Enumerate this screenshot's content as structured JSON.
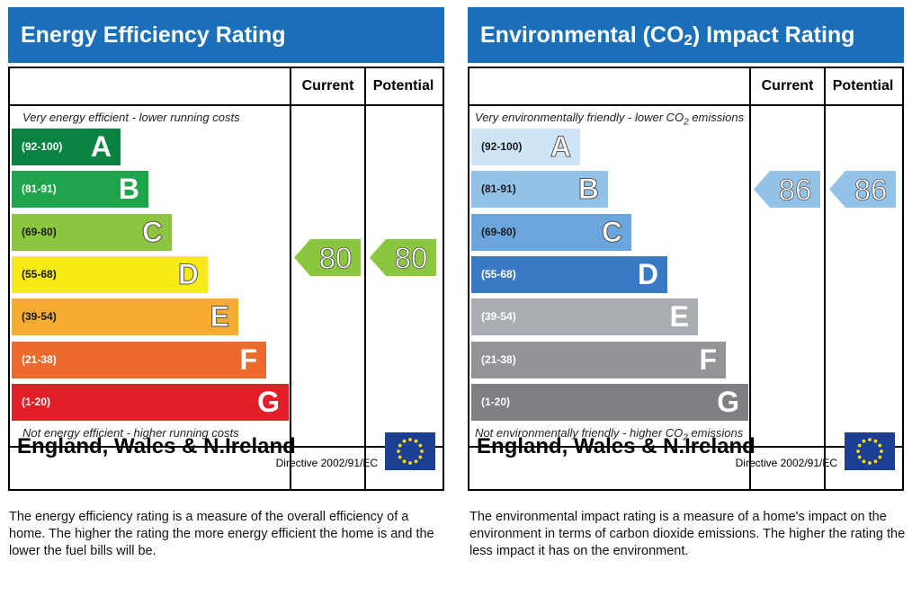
{
  "chart_data": [
    {
      "type": "bar",
      "title": "Energy Efficiency Rating",
      "columns": [
        "Current",
        "Potential"
      ],
      "caption_top": "Very energy efficient - lower running costs",
      "caption_bottom": "Not energy efficient - higher running costs",
      "categories": [
        "A",
        "B",
        "C",
        "D",
        "E",
        "F",
        "G"
      ],
      "bands": [
        {
          "range": "(92-100)",
          "letter": "A",
          "color": "#0a8341"
        },
        {
          "range": "(81-91)",
          "letter": "B",
          "color": "#1ea44a"
        },
        {
          "range": "(69-80)",
          "letter": "C",
          "color": "#8cc63f"
        },
        {
          "range": "(55-68)",
          "letter": "D",
          "color": "#f6eb14"
        },
        {
          "range": "(39-54)",
          "letter": "E",
          "color": "#f6ab32"
        },
        {
          "range": "(21-38)",
          "letter": "F",
          "color": "#ec6a2c"
        },
        {
          "range": "(1-20)",
          "letter": "G",
          "color": "#e31e26"
        }
      ],
      "current": 80,
      "potential": 80,
      "arrow_color": "#8cc63f",
      "footer_country": "England, Wales & N.Ireland",
      "footer_directive": "Directive 2002/91/EC"
    },
    {
      "type": "bar",
      "title": "Environmental (CO2) Impact Rating",
      "title_parts": {
        "before": "Environmental (CO",
        "sub": "2",
        "after": ") Impact Rating"
      },
      "columns": [
        "Current",
        "Potential"
      ],
      "caption_top": "Very environmentally friendly - lower CO2 emissions",
      "caption_top_parts": {
        "before": "Very environmentally friendly - lower CO",
        "sub": "2",
        "after": " emissions"
      },
      "caption_bottom": "Not environmentally friendly - higher CO2 emissions",
      "caption_bottom_parts": {
        "before": "Not environmentally friendly - higher CO",
        "sub": "2",
        "after": " emissions"
      },
      "categories": [
        "A",
        "B",
        "C",
        "D",
        "E",
        "F",
        "G"
      ],
      "bands": [
        {
          "range": "(92-100)",
          "letter": "A",
          "color": "#cde4f6"
        },
        {
          "range": "(81-91)",
          "letter": "B",
          "color": "#93c2e9"
        },
        {
          "range": "(69-80)",
          "letter": "C",
          "color": "#6aa6dc"
        },
        {
          "range": "(55-68)",
          "letter": "D",
          "color": "#3a7ac4"
        },
        {
          "range": "(39-54)",
          "letter": "E",
          "color": "#a9acb0"
        },
        {
          "range": "(21-38)",
          "letter": "F",
          "color": "#929497"
        },
        {
          "range": "(1-20)",
          "letter": "G",
          "color": "#7f8083"
        }
      ],
      "current": 86,
      "potential": 86,
      "arrow_color": "#93c2e9",
      "footer_country": "England, Wales & N.Ireland",
      "footer_directive": "Directive 2002/91/EC"
    }
  ],
  "descriptions": {
    "energy": "The energy efficiency rating is a measure of the overall efficiency of a home. The higher the rating the more energy efficient the home is and the lower the fuel bills will be.",
    "environment": "The environmental impact rating is a measure of a home's impact on the environment in terms of carbon dioxide emissions. The higher the rating the less impact it has on the environment."
  },
  "colors": {
    "header_blue": "#1a6fb8",
    "eu_flag_blue": "#1c3f94",
    "eu_star_yellow": "#ffdd00"
  },
  "icons": [
    "eu-flag-icon"
  ]
}
